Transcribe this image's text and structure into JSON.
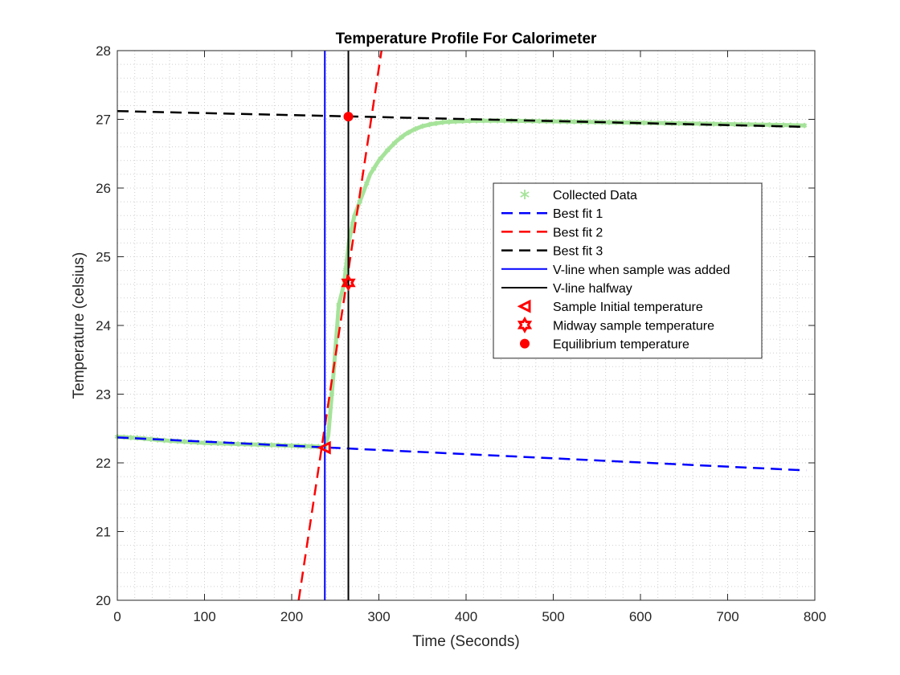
{
  "chart_data": {
    "type": "line",
    "title": "Temperature Profile For Calorimeter",
    "xlabel": "Time (Seconds)",
    "ylabel": "Temperature (celsius)",
    "xlim": [
      0,
      800
    ],
    "ylim": [
      20,
      28
    ],
    "xticks": [
      "0",
      "100",
      "200",
      "300",
      "400",
      "500",
      "600",
      "700",
      "800"
    ],
    "yticks": [
      "20",
      "21",
      "22",
      "23",
      "24",
      "25",
      "26",
      "27",
      "28"
    ],
    "grid": "minor dotted",
    "legend_position": "center-right",
    "legend": [
      {
        "label": "Collected Data",
        "color": "#a6e39a",
        "style": "asterisk"
      },
      {
        "label": "Best fit 1",
        "color": "#0000ff",
        "style": "dashed"
      },
      {
        "label": "Best fit 2",
        "color": "#ff0000",
        "style": "dashed"
      },
      {
        "label": "Best fit 3",
        "color": "#000000",
        "style": "dashed"
      },
      {
        "label": "V-line when sample was added",
        "color": "#0000ff",
        "style": "solid"
      },
      {
        "label": "V-line halfway",
        "color": "#000000",
        "style": "solid"
      },
      {
        "label": "Sample Initial temperature",
        "color": "#ff0000",
        "style": "triangle-left"
      },
      {
        "label": "Midway sample temperature",
        "color": "#ff0000",
        "style": "hexagram"
      },
      {
        "label": "Equilibrium temperature",
        "color": "#ff0000",
        "style": "dot"
      }
    ],
    "series": [
      {
        "name": "Collected Data",
        "x": [
          0,
          25,
          50,
          75,
          100,
          125,
          150,
          175,
          200,
          225,
          238,
          242,
          248,
          254,
          260,
          266,
          272,
          278,
          284,
          290,
          300,
          310,
          320,
          330,
          340,
          350,
          360,
          375,
          390,
          410,
          450,
          500,
          550,
          600,
          650,
          700,
          750,
          790
        ],
        "y": [
          22.38,
          22.36,
          22.33,
          22.31,
          22.29,
          22.28,
          22.27,
          22.26,
          22.25,
          22.24,
          22.23,
          22.4,
          23.3,
          24.3,
          24.6,
          25.25,
          25.6,
          25.8,
          26.0,
          26.2,
          26.4,
          26.55,
          26.68,
          26.78,
          26.85,
          26.9,
          26.93,
          26.96,
          26.97,
          26.98,
          26.98,
          26.97,
          26.96,
          26.95,
          26.94,
          26.93,
          26.92,
          26.91
        ]
      },
      {
        "name": "Best fit 1",
        "x": [
          0,
          790
        ],
        "y": [
          22.37,
          21.89
        ]
      },
      {
        "name": "Best fit 2",
        "x": [
          208,
          303
        ],
        "y": [
          20.0,
          28.0
        ]
      },
      {
        "name": "Best fit 3",
        "x": [
          0,
          790
        ],
        "y": [
          27.12,
          26.89
        ]
      },
      {
        "name": "V-line when sample was added",
        "x": [
          238,
          238
        ],
        "y": [
          20,
          28
        ]
      },
      {
        "name": "V-line halfway",
        "x": [
          265,
          265
        ],
        "y": [
          20,
          28
        ]
      },
      {
        "name": "Sample Initial temperature",
        "x": [
          238
        ],
        "y": [
          22.22
        ]
      },
      {
        "name": "Midway sample temperature",
        "x": [
          265
        ],
        "y": [
          24.62
        ]
      },
      {
        "name": "Equilibrium temperature",
        "x": [
          265
        ],
        "y": [
          27.04
        ]
      }
    ]
  }
}
